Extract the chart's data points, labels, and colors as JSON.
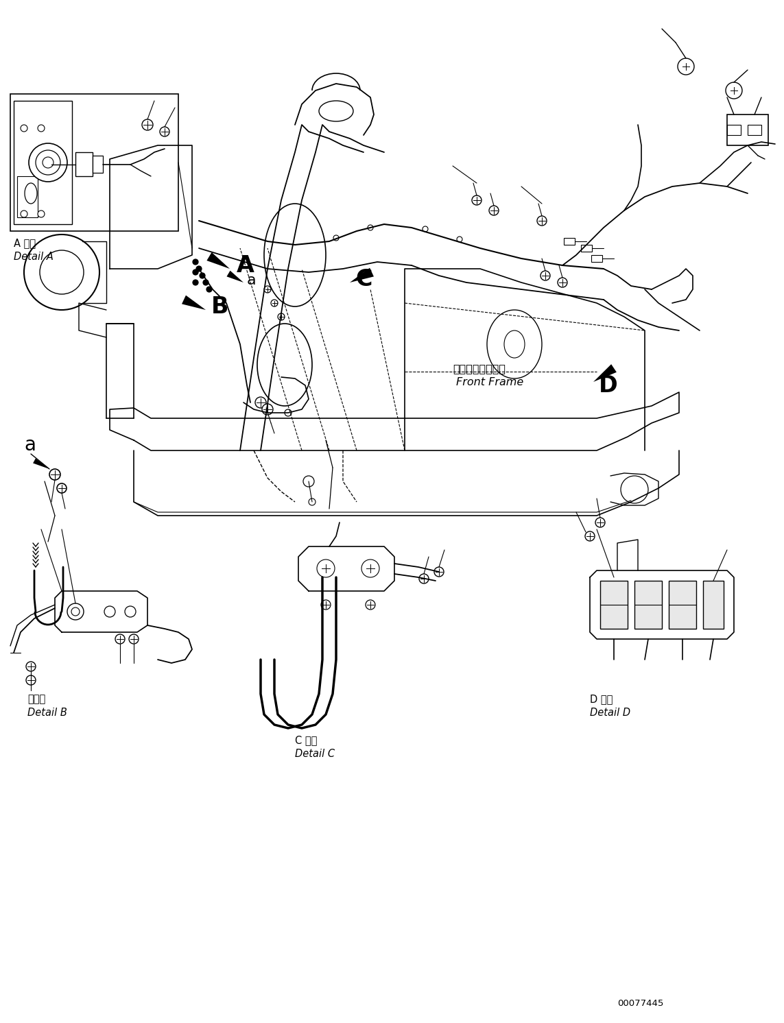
{
  "background_color": "#ffffff",
  "figsize": [
    11.43,
    14.92
  ],
  "dpi": 100,
  "labels": {
    "detail_a_japanese": "A 詳細",
    "detail_a_english": "Detail A",
    "detail_b_japanese": "日詳細",
    "detail_b_english": "Detail B",
    "detail_c_japanese": "C 詳細",
    "detail_c_english": "Detail C",
    "detail_d_japanese": "D 詳細",
    "detail_d_english": "Detail D",
    "front_frame_japanese": "フロントフレーム",
    "front_frame_english": "Front Frame",
    "part_number": "00077445",
    "label_a": "A",
    "label_a_small": "a",
    "label_b": "B",
    "label_c": "C",
    "label_d": "D"
  },
  "text_color": "#000000"
}
